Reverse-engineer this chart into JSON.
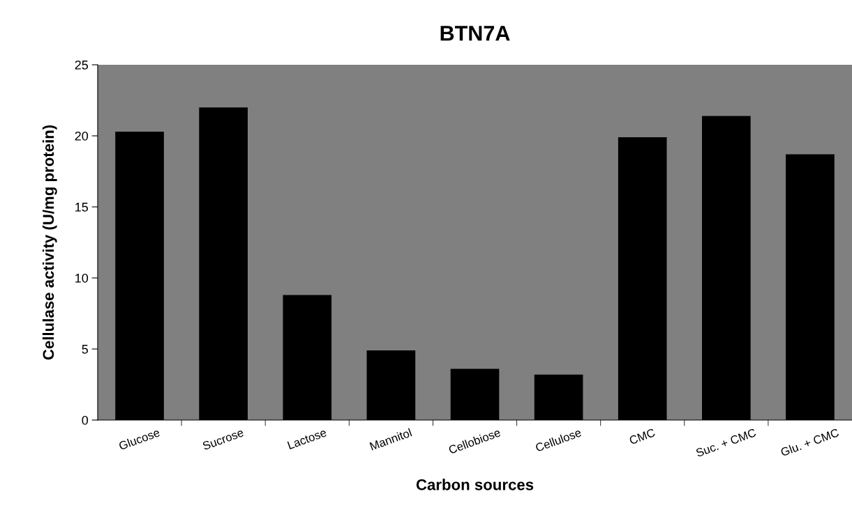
{
  "chart_data": {
    "type": "bar",
    "title": "BTN7A",
    "xlabel": "Carbon sources",
    "ylabel": "Cellulase activity (U/mg protein)",
    "categories": [
      "Glucose",
      "Sucrose",
      "Lactose",
      "Mannitol",
      "Cellobiose",
      "Cellulose",
      "CMC",
      "Suc. + CMC",
      "Glu. + CMC"
    ],
    "values": [
      20.3,
      22.0,
      8.8,
      4.9,
      3.6,
      3.2,
      19.9,
      21.4,
      18.7
    ],
    "color": "#000000",
    "ylim": [
      0,
      25
    ],
    "yticks": [
      0,
      5,
      10,
      15,
      20,
      25
    ],
    "grid": false,
    "legend": false
  }
}
